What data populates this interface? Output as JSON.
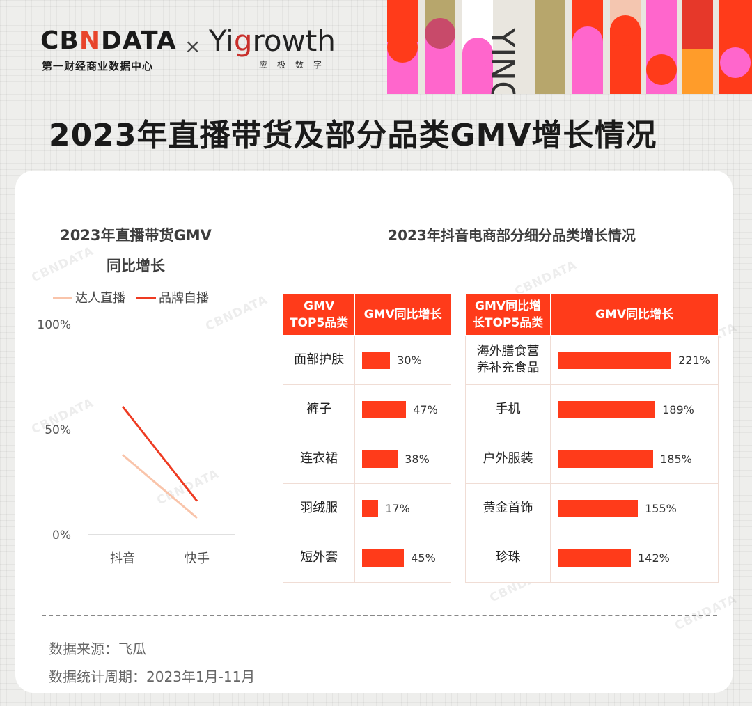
{
  "header": {
    "cbn_logo": "CB",
    "cbn_logo_n": "N",
    "cbn_logo_tail": "DATA",
    "cbn_sub": "第一财经商业数据中心",
    "times": "×",
    "yi_logo_a": "Yi",
    "yi_logo_g": "g",
    "yi_logo_b": "rowth",
    "yi_sub": "应极数字",
    "deco_text": "YING"
  },
  "main_title": "2023年直播带货及部分品类GMV增长情况",
  "watermark": "CBNDATA",
  "footer": {
    "source": "数据来源：飞瓜",
    "period": "数据统计周期：2023年1月-11月"
  },
  "colors": {
    "accent": "#ff3b1a",
    "light_line": "#f9c4aa",
    "dark_line": "#ee3b22"
  },
  "chart_data": [
    {
      "type": "line",
      "title_lines": [
        "2023年直播带货GMV",
        "同比增长"
      ],
      "categories": [
        "抖音",
        "快手"
      ],
      "series": [
        {
          "name": "达人直播",
          "values": [
            38,
            8
          ],
          "color": "#f9c4aa"
        },
        {
          "name": "品牌自播",
          "values": [
            61,
            16
          ],
          "color": "#ee3b22"
        }
      ],
      "ylim": [
        0,
        100
      ],
      "yticks": [
        "100%",
        "50%",
        "0%"
      ],
      "yticks_values": [
        100,
        50,
        0
      ],
      "legend": "top",
      "grid": false
    },
    {
      "type": "table",
      "title": "2023年抖音电商部分细分品类增长情况",
      "tables": [
        {
          "headers": [
            "GMV\nTOP5品类",
            "GMV同比增长"
          ],
          "rows": [
            {
              "category": "面部护肤",
              "value": 30,
              "label": "30%"
            },
            {
              "category": "裤子",
              "value": 47,
              "label": "47%"
            },
            {
              "category": "连衣裙",
              "value": 38,
              "label": "38%"
            },
            {
              "category": "羽绒服",
              "value": 17,
              "label": "17%"
            },
            {
              "category": "短外套",
              "value": 45,
              "label": "45%"
            }
          ]
        },
        {
          "headers": [
            "GMV同比增\n长TOP5品类",
            "GMV同比增长"
          ],
          "rows": [
            {
              "category": "海外膳食营\n养补充食品",
              "value": 221,
              "label": "221%"
            },
            {
              "category": "手机",
              "value": 189,
              "label": "189%"
            },
            {
              "category": "户外服装",
              "value": 185,
              "label": "185%"
            },
            {
              "category": "黄金首饰",
              "value": 155,
              "label": "155%"
            },
            {
              "category": "珍珠",
              "value": 142,
              "label": "142%"
            }
          ]
        }
      ]
    }
  ]
}
